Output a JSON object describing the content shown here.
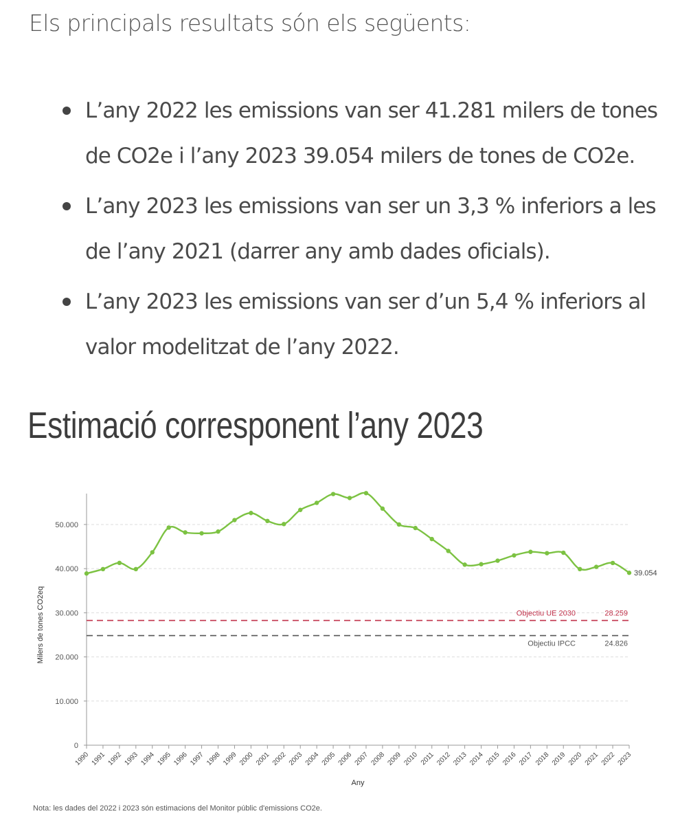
{
  "intro": "Els principals resultats són els següents:",
  "bullets": [
    "L’any 2022 les emissions van ser 41.281 milers de tones de CO2e i l’any 2023 39.054 milers de tones de CO2e.",
    "L’any 2023 les emissions van ser un 3,3 % inferiors a les de l’any 2021 (darrer any amb dades oficials).",
    "L’any 2023 les emissions van ser d’un 5,4 % inferiors al valor modelitzat de l’any 2022."
  ],
  "heading": "Estimació corresponent l’any 2023",
  "note": "Nota: les dades del 2022 i 2023 són estimacions del Monitor públic d'emissions CO2e.",
  "chart_data": {
    "type": "line",
    "title": "",
    "xlabel": "Any",
    "ylabel": "Milers de tones CO2eq",
    "ylim": [
      0,
      57000
    ],
    "yticks": [
      0,
      10000,
      20000,
      30000,
      40000,
      50000
    ],
    "ytick_labels": [
      "0",
      "10.000",
      "20.000",
      "30.000",
      "40.000",
      "50.000"
    ],
    "grid": true,
    "categories": [
      "1990",
      "1991",
      "1992",
      "1993",
      "1994",
      "1995",
      "1996",
      "1997",
      "1998",
      "1999",
      "2000",
      "2001",
      "2002",
      "2003",
      "2004",
      "2005",
      "2006",
      "2007",
      "2008",
      "2009",
      "2010",
      "2011",
      "2012",
      "2013",
      "2014",
      "2015",
      "2016",
      "2017",
      "2018",
      "2019",
      "2020",
      "2021",
      "2022",
      "2023"
    ],
    "series": [
      {
        "color": "#7cc242",
        "values": [
          38900,
          39900,
          41300,
          39900,
          43700,
          49300,
          48200,
          48000,
          48400,
          51000,
          52600,
          50800,
          50100,
          53300,
          54900,
          56900,
          56000,
          57100,
          53600,
          50000,
          49200,
          46700,
          44000,
          40900,
          41000,
          41800,
          43000,
          43800,
          43500,
          43600,
          39900,
          40400,
          41281,
          39054
        ],
        "end_label": "39.054"
      }
    ],
    "reference_lines": [
      {
        "label": "Objectiu UE 2030",
        "value": 28259,
        "value_label": "28.259",
        "color": "#c0314a",
        "label_position": "above"
      },
      {
        "label": "Objectiu IPCC",
        "value": 24826,
        "value_label": "24.826",
        "color": "#555555",
        "label_position": "below"
      }
    ]
  }
}
